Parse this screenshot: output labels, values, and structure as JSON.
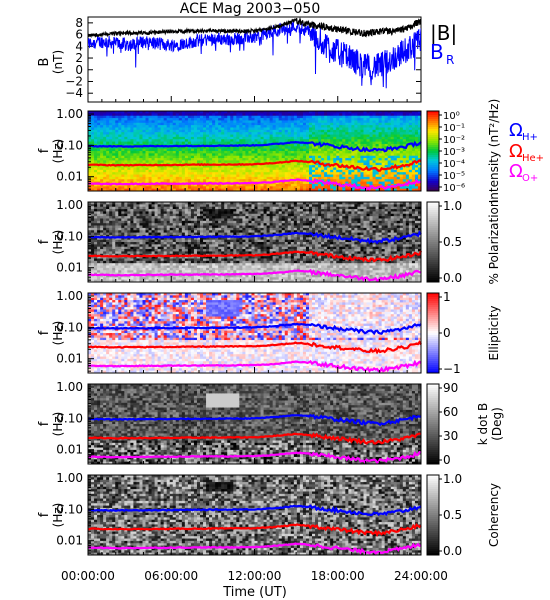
{
  "chart_data": {
    "type": "spectrogram-panels",
    "title": "ACE Mag 2003−050",
    "xlabel": "Time (UT)",
    "x_ticks": [
      "00:00:00",
      "06:00:00",
      "12:00:00",
      "18:00:00",
      "24:00:00"
    ],
    "x_range_hours": [
      0,
      24
    ],
    "panels": [
      {
        "id": "b-field",
        "type": "line",
        "ylabel": "B",
        "yunit": "(nT)",
        "ylim": [
          -5.5,
          9
        ],
        "yticks": [
          "8",
          "6",
          "4",
          "2",
          "0",
          "−2",
          "−4"
        ],
        "legend": [
          "|B|",
          "B",
          "R"
        ],
        "series": [
          {
            "name": "|B|",
            "color": "#000000",
            "x": [
              0,
              1,
              2,
              3,
              4,
              5,
              6,
              7,
              8,
              9,
              10,
              11,
              12,
              13,
              14,
              15,
              15.5,
              16,
              17,
              18,
              19,
              20,
              21,
              22,
              23,
              24
            ],
            "y": [
              5.8,
              6.0,
              6.2,
              6.3,
              6.3,
              6.4,
              6.5,
              6.6,
              6.6,
              6.7,
              6.6,
              6.6,
              6.6,
              7.0,
              7.6,
              8.5,
              8.0,
              7.7,
              7.3,
              6.9,
              6.5,
              6.2,
              6.5,
              6.5,
              7.0,
              8.5
            ]
          },
          {
            "name": "B_R",
            "color": "#0000ff",
            "x": [
              0,
              1,
              2,
              3,
              4,
              5,
              6,
              7,
              8,
              9,
              10,
              11,
              12,
              13,
              14,
              15,
              16,
              17,
              18,
              19,
              20,
              21,
              22,
              23,
              24
            ],
            "y": [
              4.5,
              4.8,
              4.6,
              4.2,
              4.8,
              4.5,
              4.2,
              4.5,
              5.0,
              5.3,
              5.2,
              5.4,
              5.6,
              6.3,
              7.0,
              7.4,
              6.5,
              4.5,
              3.0,
              1.8,
              0.5,
              0.6,
              2.0,
              3.5,
              5.0
            ]
          }
        ]
      },
      {
        "id": "intensity",
        "type": "heatmap",
        "ylabel": "f",
        "yunit": "(Hz)",
        "yticks": [
          "1.00",
          "0.10",
          "0.01"
        ],
        "colorbar_label": "Intensity (nT²/Hz)",
        "colorbar_ticks": [
          "10⁰",
          "10⁻¹",
          "10⁻²",
          "10⁻³",
          "10⁻⁴",
          "10⁻⁵",
          "10⁻⁶"
        ],
        "colormap": "rainbow"
      },
      {
        "id": "polarization",
        "type": "heatmap",
        "ylabel": "f",
        "yunit": "(Hz)",
        "yticks": [
          "1.00",
          "0.10",
          "0.01"
        ],
        "colorbar_label": "% Polarization",
        "colorbar_ticks": [
          "1.0",
          "0.5",
          "0.0"
        ],
        "colormap": "gray"
      },
      {
        "id": "ellipticity",
        "type": "heatmap",
        "ylabel": "f",
        "yunit": "(Hz)",
        "yticks": [
          "1.00",
          "0.10",
          "0.01"
        ],
        "colorbar_label": "Ellipticity",
        "colorbar_ticks": [
          "1",
          "0",
          "−1"
        ],
        "colormap": "blue-white-red"
      },
      {
        "id": "k-dot-b",
        "type": "heatmap",
        "ylabel": "f",
        "yunit": "(Hz)",
        "yticks": [
          "1.00",
          "0.10",
          "0.01"
        ],
        "colorbar_label": "k dot B",
        "colorbar_unit": "(Deg)",
        "colorbar_ticks": [
          "90",
          "60",
          "30",
          "0"
        ],
        "colormap": "gray"
      },
      {
        "id": "coherency",
        "type": "heatmap",
        "ylabel": "f",
        "yunit": "(Hz)",
        "yticks": [
          "1.00",
          "0.10",
          "0.01"
        ],
        "colorbar_label": "Coherency",
        "colorbar_ticks": [
          "1.0",
          "0.5",
          "0.0"
        ],
        "colormap": "gray"
      }
    ],
    "overlay_lines": [
      {
        "name": "ΩH+",
        "label": "Ω",
        "sub": "H+",
        "color": "#0000ff",
        "x": [
          0,
          2,
          4,
          6,
          8,
          10,
          12,
          13,
          14,
          15,
          16,
          17,
          18,
          19,
          20,
          21,
          22,
          23,
          24
        ],
        "f": [
          0.095,
          0.093,
          0.094,
          0.095,
          0.097,
          0.098,
          0.1,
          0.106,
          0.115,
          0.128,
          0.118,
          0.105,
          0.092,
          0.082,
          0.072,
          0.07,
          0.08,
          0.095,
          0.125
        ]
      },
      {
        "name": "ΩHe+",
        "label": "Ω",
        "sub": "He+",
        "color": "#ff0000",
        "x": [
          0,
          2,
          4,
          6,
          8,
          10,
          12,
          13,
          14,
          15,
          16,
          17,
          18,
          19,
          20,
          21,
          22,
          23,
          24
        ],
        "f": [
          0.024,
          0.0233,
          0.0235,
          0.0238,
          0.0243,
          0.0245,
          0.025,
          0.0265,
          0.029,
          0.032,
          0.0295,
          0.026,
          0.023,
          0.0205,
          0.018,
          0.0175,
          0.02,
          0.024,
          0.031
        ]
      },
      {
        "name": "ΩO+",
        "label": "Ω",
        "sub": "O+",
        "color": "#ff00ff",
        "x": [
          0,
          2,
          4,
          6,
          8,
          10,
          12,
          13,
          14,
          15,
          16,
          17,
          18,
          19,
          20,
          21,
          22,
          23,
          24
        ],
        "f": [
          0.006,
          0.0058,
          0.0059,
          0.006,
          0.0061,
          0.0061,
          0.0063,
          0.0066,
          0.0072,
          0.008,
          0.0074,
          0.0065,
          0.0058,
          0.0051,
          0.0045,
          0.0044,
          0.005,
          0.006,
          0.0078
        ]
      }
    ],
    "f_range": [
      0.0035,
      1.25
    ]
  }
}
